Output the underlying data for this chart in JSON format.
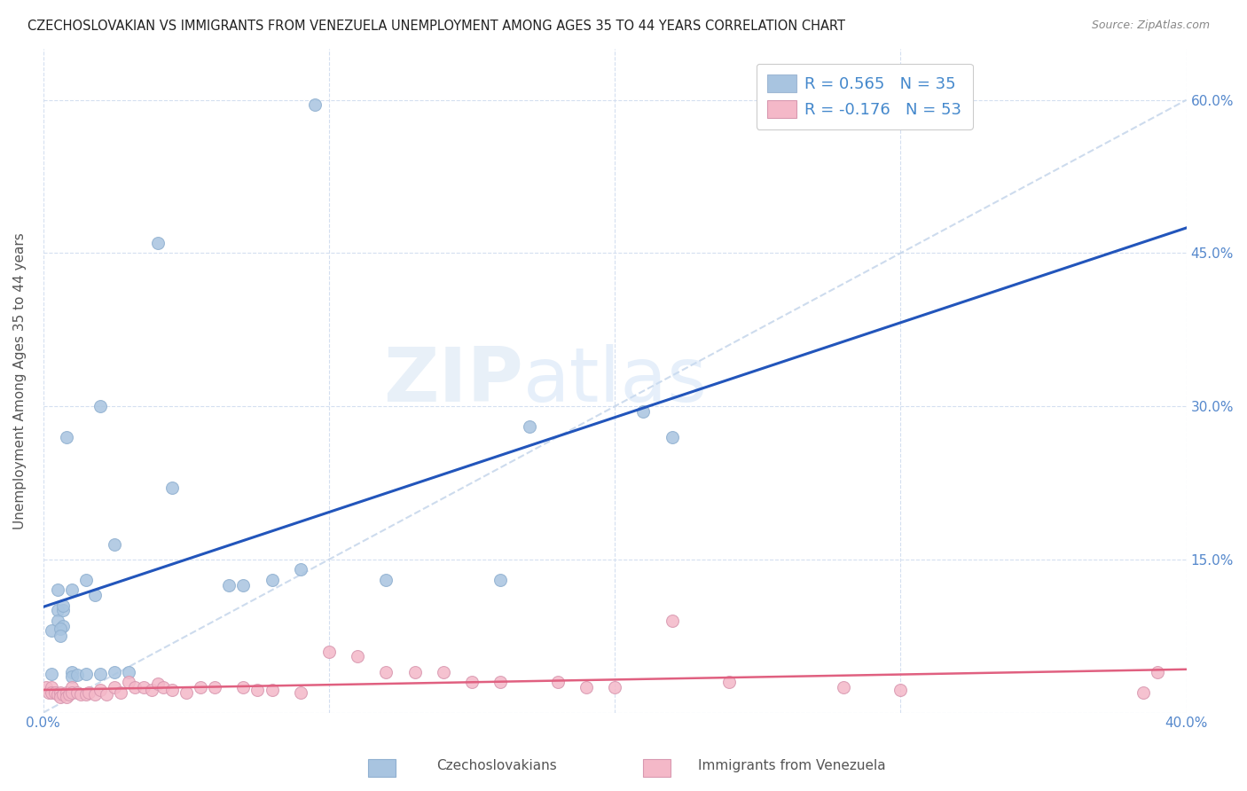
{
  "title": "CZECHOSLOVAKIAN VS IMMIGRANTS FROM VENEZUELA UNEMPLOYMENT AMONG AGES 35 TO 44 YEARS CORRELATION CHART",
  "source": "Source: ZipAtlas.com",
  "ylabel": "Unemployment Among Ages 35 to 44 years",
  "xlim": [
    0.0,
    0.4
  ],
  "ylim": [
    0.0,
    0.65
  ],
  "xtick_positions": [
    0.0,
    0.1,
    0.2,
    0.3,
    0.4
  ],
  "xtick_labels": [
    "0.0%",
    "",
    "",
    "",
    "40.0%"
  ],
  "ytick_positions": [
    0.0,
    0.15,
    0.3,
    0.45,
    0.6
  ],
  "ytick_labels_left": [
    "",
    "",
    "",
    "",
    ""
  ],
  "ytick_labels_right": [
    "",
    "15.0%",
    "30.0%",
    "45.0%",
    "60.0%"
  ],
  "watermark": "ZIPatlas",
  "scatter_blue": "#a8c4e0",
  "scatter_pink": "#f4b8c8",
  "blue_line_color": "#2255bb",
  "pink_line_color": "#e06080",
  "diag_line_color": "#c8d8ec",
  "grid_color": "#d4dff0",
  "background_color": "#ffffff",
  "blue_r": "0.565",
  "blue_n": "35",
  "pink_r": "-0.176",
  "pink_n": "53",
  "blue_scatter_x": [
    0.095,
    0.04,
    0.02,
    0.008,
    0.045,
    0.025,
    0.015,
    0.005,
    0.01,
    0.018,
    0.005,
    0.005,
    0.007,
    0.007,
    0.007,
    0.003,
    0.006,
    0.006,
    0.003,
    0.01,
    0.01,
    0.012,
    0.015,
    0.02,
    0.025,
    0.03,
    0.065,
    0.07,
    0.08,
    0.09,
    0.12,
    0.16,
    0.17,
    0.21,
    0.22
  ],
  "blue_scatter_y": [
    0.595,
    0.46,
    0.3,
    0.27,
    0.22,
    0.165,
    0.13,
    0.12,
    0.12,
    0.115,
    0.1,
    0.09,
    0.085,
    0.1,
    0.105,
    0.08,
    0.082,
    0.075,
    0.038,
    0.04,
    0.035,
    0.037,
    0.038,
    0.038,
    0.04,
    0.04,
    0.125,
    0.125,
    0.13,
    0.14,
    0.13,
    0.13,
    0.28,
    0.295,
    0.27
  ],
  "pink_scatter_x": [
    0.001,
    0.002,
    0.003,
    0.003,
    0.004,
    0.005,
    0.006,
    0.006,
    0.007,
    0.008,
    0.008,
    0.009,
    0.01,
    0.01,
    0.012,
    0.013,
    0.015,
    0.016,
    0.018,
    0.02,
    0.022,
    0.025,
    0.027,
    0.03,
    0.032,
    0.035,
    0.038,
    0.04,
    0.042,
    0.045,
    0.05,
    0.055,
    0.06,
    0.07,
    0.075,
    0.08,
    0.09,
    0.1,
    0.11,
    0.12,
    0.13,
    0.14,
    0.15,
    0.16,
    0.18,
    0.19,
    0.2,
    0.22,
    0.24,
    0.28,
    0.3,
    0.385,
    0.39
  ],
  "pink_scatter_y": [
    0.025,
    0.02,
    0.025,
    0.02,
    0.02,
    0.018,
    0.02,
    0.015,
    0.018,
    0.02,
    0.015,
    0.018,
    0.025,
    0.02,
    0.02,
    0.018,
    0.018,
    0.02,
    0.018,
    0.022,
    0.018,
    0.025,
    0.02,
    0.03,
    0.025,
    0.025,
    0.022,
    0.028,
    0.025,
    0.022,
    0.02,
    0.025,
    0.025,
    0.025,
    0.022,
    0.022,
    0.02,
    0.06,
    0.055,
    0.04,
    0.04,
    0.04,
    0.03,
    0.03,
    0.03,
    0.025,
    0.025,
    0.09,
    0.03,
    0.025,
    0.022,
    0.02,
    0.04
  ]
}
